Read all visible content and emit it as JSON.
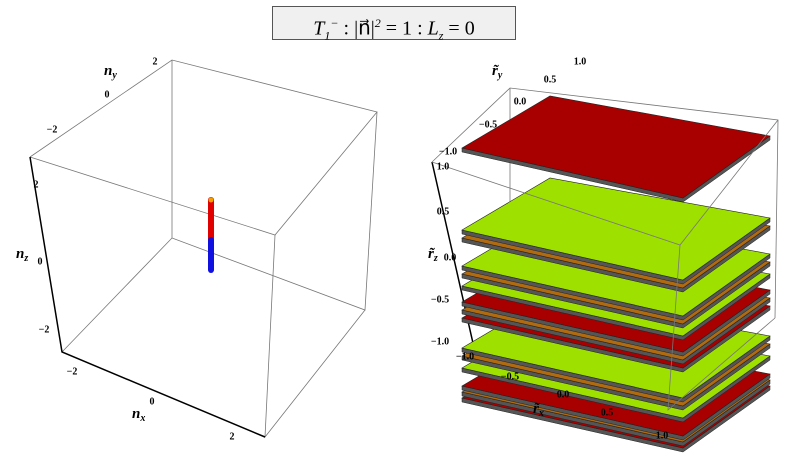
{
  "title": {
    "symbol": "T",
    "sub": "1",
    "sup": "−",
    "sep1": ":",
    "lhs": "|n⃗|",
    "exp": "2",
    "rhs1": "= 1",
    "sep2": ":",
    "lz": "L",
    "lzsub": "z",
    "rhs2": "= 0"
  },
  "panels": [
    {
      "axes": [
        {
          "base": "n",
          "sub": "y",
          "ticks": [
            "2",
            "0",
            "−2"
          ]
        },
        {
          "base": "n",
          "sub": "z",
          "ticks": [
            "2",
            "0",
            "−2"
          ]
        },
        {
          "base": "n",
          "sub": "x",
          "ticks": [
            "−2",
            "0",
            "2"
          ]
        }
      ]
    },
    {
      "axes": [
        {
          "base": "r̃",
          "sub": "y",
          "ticks": [
            "1.0",
            "0.5",
            "0.0",
            "−0.5",
            "−1.0"
          ]
        },
        {
          "base": "r̃",
          "sub": "z",
          "ticks": [
            "1.0",
            "0.5",
            "0.0",
            "−0.5",
            "−1.0"
          ]
        },
        {
          "base": "r̃",
          "sub": "x",
          "ticks": [
            "−1.0",
            "−0.5",
            "0.0",
            "0.5",
            "1.0"
          ]
        }
      ]
    }
  ]
}
